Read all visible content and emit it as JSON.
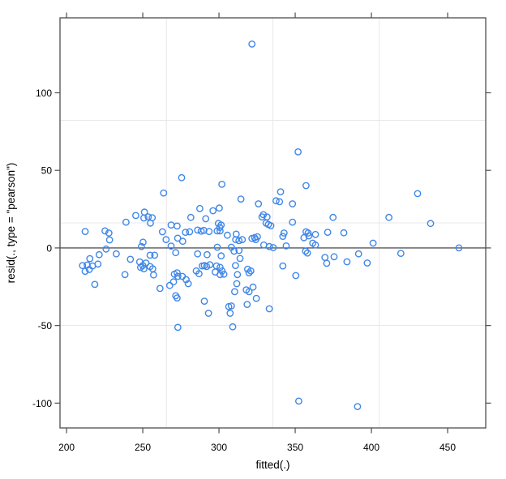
{
  "figure": {
    "background": "#ffffff"
  },
  "chart_data": {
    "type": "scatter",
    "title": "",
    "xlabel": "fitted(.)",
    "ylabel": "resid(., type = \"pearson\")",
    "xlim": [
      195.7,
      475.0
    ],
    "ylim": [
      -116.0,
      148.3
    ],
    "x_ticks": [
      200,
      250,
      300,
      350,
      400,
      450
    ],
    "y_ticks": [
      -100,
      -50,
      0,
      50,
      100
    ],
    "grid": {
      "h_lines": 3,
      "v_lines": 3,
      "spacing": "even-quarters",
      "color": "#e8e8e8"
    },
    "reference_line_y": 0,
    "colors": {
      "point": "#3F87E8",
      "box": "#4d4d4d",
      "zero_line": "#333333",
      "text": "#000000"
    },
    "marker": {
      "shape": "open-circle",
      "radius_px": 3.7,
      "stroke_px": 1.4
    },
    "legend": null,
    "points": [
      [
        263.7,
        35.4
      ],
      [
        212.2,
        10.6
      ],
      [
        225.2,
        11.0
      ],
      [
        227.8,
        9.6
      ],
      [
        239.0,
        16.6
      ],
      [
        245.4,
        20.9
      ],
      [
        251.1,
        23.1
      ],
      [
        250.7,
        19.3
      ],
      [
        253.6,
        20.0
      ],
      [
        255.0,
        16.0
      ],
      [
        256.2,
        19.5
      ],
      [
        268.6,
        14.8
      ],
      [
        272.5,
        14.1
      ],
      [
        262.9,
        10.4
      ],
      [
        272.9,
        6.3
      ],
      [
        265.3,
        5.4
      ],
      [
        228.2,
        5.2
      ],
      [
        225.9,
        -0.7
      ],
      [
        232.6,
        -3.8
      ],
      [
        221.4,
        -4.3
      ],
      [
        215.3,
        -6.9
      ],
      [
        241.9,
        -7.3
      ],
      [
        249.1,
        0.9
      ],
      [
        250.2,
        3.7
      ],
      [
        254.8,
        -4.7
      ],
      [
        257.8,
        -4.7
      ],
      [
        252.1,
        -9.7
      ],
      [
        248.0,
        -9.0
      ],
      [
        268.6,
        1.2
      ],
      [
        271.6,
        -3.0
      ],
      [
        301.9,
        41.0
      ],
      [
        340.4,
        36.2
      ],
      [
        337.4,
        30.4
      ],
      [
        339.7,
        29.8
      ],
      [
        314.4,
        31.5
      ],
      [
        287.4,
        25.4
      ],
      [
        300.2,
        25.7
      ],
      [
        296.1,
        24.0
      ],
      [
        325.9,
        28.4
      ],
      [
        281.5,
        19.7
      ],
      [
        291.3,
        18.8
      ],
      [
        329.1,
        21.4
      ],
      [
        331.5,
        20.0
      ],
      [
        328.2,
        20.0
      ],
      [
        299.6,
        15.8
      ],
      [
        301.4,
        14.8
      ],
      [
        300.5,
        13.2
      ],
      [
        280.7,
        10.4
      ],
      [
        278.0,
        10.1
      ],
      [
        286.0,
        11.5
      ],
      [
        288.3,
        10.8
      ],
      [
        290.1,
        11.3
      ],
      [
        293.5,
        10.6
      ],
      [
        298.8,
        11.0
      ],
      [
        300.7,
        11.0
      ],
      [
        305.5,
        8.2
      ],
      [
        311.3,
        8.9
      ],
      [
        315.3,
        5.4
      ],
      [
        313.1,
        4.7
      ],
      [
        311.0,
        5.4
      ],
      [
        321.6,
        6.1
      ],
      [
        323.4,
        6.6
      ],
      [
        325.2,
        7.2
      ],
      [
        324.1,
        5.4
      ],
      [
        330.9,
        16.0
      ],
      [
        332.4,
        15.1
      ],
      [
        334.0,
        14.3
      ],
      [
        342.7,
        9.6
      ],
      [
        341.9,
        7.5
      ],
      [
        329.4,
        1.9
      ],
      [
        333.0,
        0.9
      ],
      [
        335.6,
        0.2
      ],
      [
        344.1,
        1.3
      ],
      [
        298.9,
        0.5
      ],
      [
        308.1,
        0.5
      ],
      [
        309.9,
        -2.1
      ],
      [
        313.1,
        -1.6
      ],
      [
        286.0,
        -3.8
      ],
      [
        292.2,
        -4.3
      ],
      [
        276.2,
        4.3
      ],
      [
        301.4,
        -5.1
      ],
      [
        313.8,
        -6.8
      ],
      [
        357.1,
        40.2
      ],
      [
        348.2,
        28.4
      ],
      [
        348.2,
        16.6
      ],
      [
        374.8,
        19.7
      ],
      [
        411.5,
        19.7
      ],
      [
        357.1,
        10.4
      ],
      [
        358.5,
        9.6
      ],
      [
        355.7,
        6.6
      ],
      [
        358.9,
        7.8
      ],
      [
        363.3,
        8.7
      ],
      [
        371.3,
        10.1
      ],
      [
        381.9,
        9.8
      ],
      [
        361.5,
        3.1
      ],
      [
        363.3,
        1.9
      ],
      [
        401.1,
        3.1
      ],
      [
        356.8,
        -2.1
      ],
      [
        358.0,
        -3.3
      ],
      [
        369.5,
        -6.1
      ],
      [
        391.6,
        -3.8
      ],
      [
        370.7,
        -9.9
      ],
      [
        384.0,
        -8.9
      ],
      [
        397.3,
        -9.7
      ],
      [
        210.5,
        -11.3
      ],
      [
        213.5,
        -11.0
      ],
      [
        217.0,
        -11.6
      ],
      [
        220.6,
        -10.4
      ],
      [
        212.2,
        -15.1
      ],
      [
        214.9,
        -13.9
      ],
      [
        238.3,
        -17.2
      ],
      [
        218.5,
        -23.5
      ],
      [
        248.6,
        -12.5
      ],
      [
        250.0,
        -11.3
      ],
      [
        250.7,
        -13.4
      ],
      [
        254.8,
        -12.0
      ],
      [
        256.5,
        -13.4
      ],
      [
        257.1,
        -17.4
      ],
      [
        261.3,
        -26.1
      ],
      [
        267.7,
        -24.2
      ],
      [
        270.2,
        -21.8
      ],
      [
        270.7,
        -16.9
      ],
      [
        272.5,
        -16.0
      ],
      [
        273.0,
        -18.3
      ],
      [
        271.6,
        -30.8
      ],
      [
        272.5,
        -32.2
      ],
      [
        273.0,
        -51.2
      ],
      [
        275.9,
        -18.3
      ],
      [
        278.4,
        -20.4
      ],
      [
        279.8,
        -23.0
      ],
      [
        285.1,
        -14.8
      ],
      [
        286.9,
        -16.6
      ],
      [
        289.0,
        -11.6
      ],
      [
        290.4,
        -11.3
      ],
      [
        291.9,
        -12.0
      ],
      [
        294.0,
        -10.8
      ],
      [
        298.4,
        -11.6
      ],
      [
        300.7,
        -12.5
      ],
      [
        302.0,
        -14.8
      ],
      [
        303.2,
        -16.9
      ],
      [
        300.7,
        -17.2
      ],
      [
        297.5,
        -15.5
      ],
      [
        310.8,
        -11.3
      ],
      [
        312.1,
        -17.2
      ],
      [
        318.8,
        -13.7
      ],
      [
        320.9,
        -14.8
      ],
      [
        319.7,
        -16.0
      ],
      [
        341.9,
        -11.6
      ],
      [
        311.7,
        -23.0
      ],
      [
        310.3,
        -28.2
      ],
      [
        317.9,
        -27.0
      ],
      [
        319.7,
        -28.2
      ],
      [
        322.3,
        -25.2
      ],
      [
        324.5,
        -32.5
      ],
      [
        318.5,
        -36.4
      ],
      [
        290.4,
        -34.3
      ],
      [
        293.1,
        -42.1
      ],
      [
        306.4,
        -37.8
      ],
      [
        308.1,
        -37.4
      ],
      [
        307.3,
        -42.1
      ],
      [
        333.0,
        -39.2
      ],
      [
        309.0,
        -50.8
      ],
      [
        350.4,
        -17.8
      ],
      [
        275.5,
        45.3
      ],
      [
        430.3,
        35.0
      ],
      [
        438.8,
        15.8
      ],
      [
        457.4,
        0.0
      ],
      [
        419.3,
        -3.5
      ],
      [
        352.3,
        -98.7
      ],
      [
        390.9,
        -102.2
      ],
      [
        321.6,
        131.4
      ],
      [
        351.9,
        61.9
      ],
      [
        375.5,
        -5.7
      ]
    ]
  }
}
